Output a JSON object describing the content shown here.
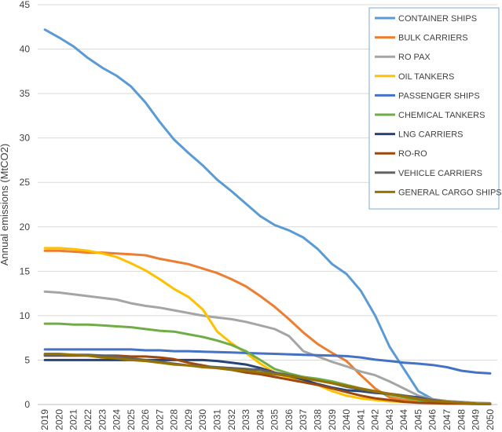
{
  "chart_data": {
    "type": "line",
    "title": "",
    "xlabel": "",
    "ylabel": "Annual emissions (MtCO2)",
    "ylim": [
      0,
      45
    ],
    "yticks": [
      0,
      5,
      10,
      15,
      20,
      25,
      30,
      35,
      40,
      45
    ],
    "grid": "horizontal",
    "legend_position": "top-right",
    "x": [
      "2019",
      "2020",
      "2021",
      "2022",
      "2023",
      "2024",
      "2025",
      "2026",
      "2027",
      "2028",
      "2029",
      "2030",
      "2031",
      "2032",
      "2033",
      "2034",
      "2035",
      "2036",
      "2037",
      "2038",
      "2039",
      "2040",
      "2041",
      "2042",
      "2043",
      "2044",
      "2045",
      "2046",
      "2047",
      "2048",
      "2049",
      "2050"
    ],
    "series": [
      {
        "name": "CONTAINER SHIPS",
        "color": "#5b9bd5",
        "values": [
          42.2,
          41.3,
          40.3,
          39.0,
          37.9,
          37.0,
          35.8,
          34.0,
          31.8,
          29.8,
          28.3,
          26.9,
          25.3,
          24.0,
          22.6,
          21.2,
          20.2,
          19.6,
          18.8,
          17.5,
          15.8,
          14.7,
          12.8,
          10.0,
          6.5,
          4.0,
          1.5,
          0.6,
          0.3,
          0.2,
          0.15,
          0.1
        ]
      },
      {
        "name": "BULK CARRIERS",
        "color": "#ed7d31",
        "values": [
          17.3,
          17.3,
          17.2,
          17.1,
          17.1,
          17.0,
          16.9,
          16.8,
          16.4,
          16.1,
          15.8,
          15.3,
          14.8,
          14.1,
          13.3,
          12.2,
          11.0,
          9.6,
          8.1,
          6.8,
          5.8,
          4.9,
          3.3,
          1.8,
          0.8,
          0.5,
          0.4,
          0.3,
          0.25,
          0.2,
          0.15,
          0.1
        ]
      },
      {
        "name": "RO PAX",
        "color": "#a5a5a5",
        "values": [
          12.7,
          12.6,
          12.4,
          12.2,
          12.0,
          11.8,
          11.4,
          11.1,
          10.9,
          10.6,
          10.3,
          10.0,
          9.8,
          9.6,
          9.3,
          8.9,
          8.5,
          7.7,
          6.0,
          5.4,
          4.8,
          4.3,
          3.7,
          3.3,
          2.6,
          1.8,
          1.0,
          0.6,
          0.4,
          0.3,
          0.2,
          0.15
        ]
      },
      {
        "name": "OIL TANKERS",
        "color": "#ffc000",
        "values": [
          17.6,
          17.6,
          17.5,
          17.3,
          17.0,
          16.6,
          15.9,
          15.1,
          14.1,
          13.0,
          12.1,
          10.7,
          8.2,
          6.9,
          5.8,
          4.6,
          3.6,
          3.0,
          2.7,
          2.2,
          1.5,
          1.0,
          0.7,
          0.5,
          0.35,
          0.3,
          0.25,
          0.2,
          0.15,
          0.1,
          0.1,
          0.05
        ]
      },
      {
        "name": "PASSENGER SHIPS",
        "color": "#4472c4",
        "values": [
          6.2,
          6.2,
          6.2,
          6.2,
          6.2,
          6.2,
          6.2,
          6.1,
          6.1,
          6.0,
          6.0,
          5.95,
          5.9,
          5.85,
          5.8,
          5.75,
          5.7,
          5.65,
          5.6,
          5.55,
          5.5,
          5.45,
          5.3,
          5.05,
          4.9,
          4.7,
          4.6,
          4.45,
          4.2,
          3.8,
          3.6,
          3.5
        ]
      },
      {
        "name": "CHEMICAL TANKERS",
        "color": "#70ad47",
        "values": [
          9.1,
          9.1,
          9.0,
          9.0,
          8.9,
          8.8,
          8.7,
          8.5,
          8.3,
          8.2,
          7.9,
          7.6,
          7.2,
          6.7,
          6.0,
          5.0,
          4.0,
          3.5,
          3.1,
          2.9,
          2.6,
          2.2,
          1.8,
          1.4,
          1.1,
          0.8,
          0.5,
          0.3,
          0.2,
          0.1,
          0.1,
          0.05
        ]
      },
      {
        "name": "LNG CARRIERS",
        "color": "#264478",
        "values": [
          5.0,
          5.0,
          5.0,
          5.0,
          5.0,
          5.0,
          5.0,
          5.0,
          5.0,
          5.0,
          5.0,
          5.0,
          4.9,
          4.7,
          4.5,
          4.1,
          3.6,
          3.2,
          2.8,
          2.3,
          1.9,
          1.6,
          1.5,
          1.3,
          1.2,
          1.0,
          0.8,
          0.5,
          0.3,
          0.2,
          0.1,
          0.05
        ]
      },
      {
        "name": "RO-RO",
        "color": "#9e480e",
        "values": [
          5.5,
          5.5,
          5.5,
          5.5,
          5.5,
          5.5,
          5.4,
          5.4,
          5.3,
          5.1,
          4.7,
          4.4,
          4.1,
          3.9,
          3.6,
          3.4,
          3.1,
          2.8,
          2.5,
          2.2,
          1.8,
          1.4,
          1.0,
          0.7,
          0.5,
          0.3,
          0.2,
          0.15,
          0.1,
          0.1,
          0.05,
          0.05
        ]
      },
      {
        "name": "VEHICLE CARRIERS",
        "color": "#636363",
        "values": [
          5.6,
          5.6,
          5.6,
          5.6,
          5.5,
          5.4,
          5.2,
          5.0,
          4.8,
          4.6,
          4.4,
          4.3,
          4.2,
          4.1,
          4.0,
          3.9,
          3.6,
          3.3,
          3.0,
          2.7,
          2.4,
          2.0,
          1.7,
          1.4,
          1.2,
          1.0,
          0.7,
          0.5,
          0.3,
          0.2,
          0.1,
          0.05
        ]
      },
      {
        "name": "GENERAL CARGO SHIPS",
        "color": "#997300",
        "values": [
          5.7,
          5.7,
          5.6,
          5.5,
          5.3,
          5.2,
          5.0,
          4.9,
          4.7,
          4.5,
          4.4,
          4.2,
          4.1,
          3.9,
          3.8,
          3.6,
          3.4,
          3.2,
          3.0,
          2.7,
          2.4,
          2.1,
          1.8,
          1.5,
          1.2,
          0.9,
          0.6,
          0.4,
          0.3,
          0.2,
          0.1,
          0.05
        ]
      }
    ]
  }
}
